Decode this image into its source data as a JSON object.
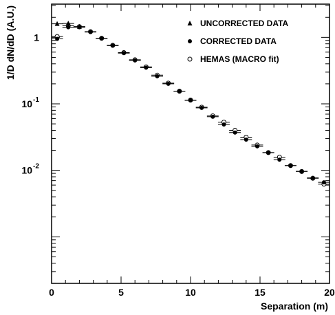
{
  "chart_data": {
    "type": "scatter",
    "xlabel": "Separation (m)",
    "ylabel": "1/D dN/dD (A.U.)",
    "xlim": [
      0,
      20
    ],
    "ylim_log10": [
      -3.7,
      0.5
    ],
    "yscale": "log",
    "x_tick_labels": [
      "0",
      "5",
      "10",
      "15",
      "20"
    ],
    "y_ticks": [
      {
        "value": 1,
        "base": "1",
        "exp": ""
      },
      {
        "value": 0.1,
        "base": "10",
        "exp": "-1"
      },
      {
        "value": 0.01,
        "base": "10",
        "exp": "-2"
      }
    ],
    "x_bin_halfwidth": 0.42,
    "legend_position": "top-right",
    "series": [
      {
        "name": "UNCORRECTED DATA",
        "marker": "triangle-filled",
        "x": [
          0.4,
          1.2,
          2.0
        ],
        "y": [
          1.6,
          1.62,
          1.45
        ]
      },
      {
        "name": "CORRECTED DATA",
        "marker": "circle-filled",
        "x": [
          0.4,
          1.2,
          2.0,
          2.8,
          3.6,
          4.4,
          5.2,
          6.0,
          6.8,
          7.6,
          8.4,
          9.2,
          10.0,
          10.8,
          11.6,
          12.4,
          13.2,
          14.0,
          14.8,
          15.6,
          16.4,
          17.2,
          18.0,
          18.8,
          19.6
        ],
        "y": [
          0.95,
          1.42,
          1.42,
          1.2,
          0.96,
          0.75,
          0.58,
          0.45,
          0.35,
          0.26,
          0.2,
          0.155,
          0.113,
          0.087,
          0.064,
          0.049,
          0.037,
          0.029,
          0.023,
          0.0185,
          0.0145,
          0.0118,
          0.0097,
          0.0077,
          0.0066
        ]
      },
      {
        "name": "HEMAS (MACRO fit)",
        "marker": "circle-open",
        "x": [
          0.4,
          1.2,
          2.0,
          2.8,
          3.6,
          4.4,
          5.2,
          6.0,
          6.8,
          7.6,
          8.4,
          9.2,
          10.0,
          10.8,
          11.6,
          12.4,
          13.2,
          14.0,
          14.8,
          15.6,
          16.4,
          17.2,
          18.0,
          18.8,
          19.6
        ],
        "y": [
          1.03,
          1.5,
          1.45,
          1.22,
          0.97,
          0.76,
          0.59,
          0.46,
          0.36,
          0.27,
          0.205,
          0.155,
          0.114,
          0.089,
          0.066,
          0.053,
          0.04,
          0.0315,
          0.024,
          0.0185,
          0.0158,
          0.0118,
          0.0096,
          0.0076,
          0.0062
        ]
      }
    ]
  }
}
